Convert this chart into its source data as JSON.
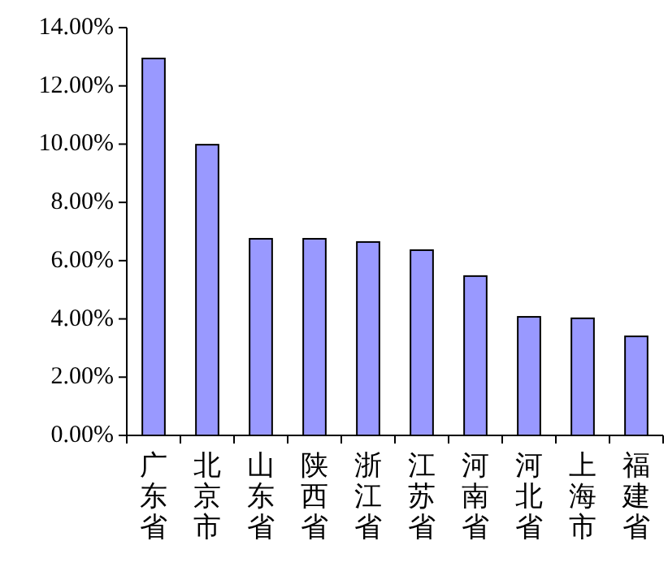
{
  "chart_data": {
    "type": "bar",
    "categories": [
      "广东省",
      "北京市",
      "山东省",
      "陕西省",
      "浙江省",
      "江苏省",
      "河南省",
      "河北省",
      "上海市",
      "福建省"
    ],
    "values": [
      12.94,
      9.98,
      6.75,
      6.75,
      6.64,
      6.36,
      5.47,
      4.07,
      4.02,
      3.4
    ],
    "color": "#9999ff",
    "ylim": [
      0,
      14
    ],
    "yticks": [
      {
        "value": 0,
        "label": "0.00%"
      },
      {
        "value": 2,
        "label": "2.00%"
      },
      {
        "value": 4,
        "label": "4.00%"
      },
      {
        "value": 6,
        "label": "6.00%"
      },
      {
        "value": 8,
        "label": "8.00%"
      },
      {
        "value": 10,
        "label": "10.00%"
      },
      {
        "value": 12,
        "label": "12.00%"
      },
      {
        "value": 14,
        "label": "14.00%"
      }
    ],
    "grid": false
  }
}
